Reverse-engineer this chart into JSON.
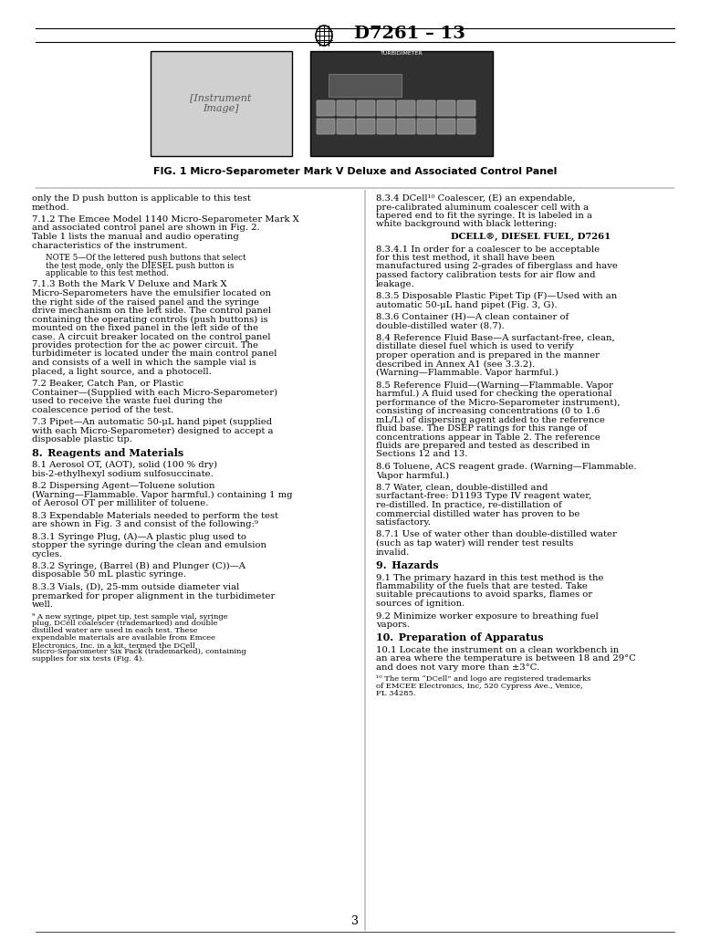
{
  "title": "D7261 – 13",
  "bg_color": "#ffffff",
  "text_color": "#000000",
  "red_color": "#cc0000",
  "fig_caption": "FIG. 1 Micro-Separometer Mark V Deluxe and Associated Control Panel",
  "page_number": "3",
  "left_column": [
    {
      "type": "body",
      "text": "only the D push button is applicable to this test method."
    },
    {
      "type": "body",
      "text": "7.1.2 The Emcee Model 1140 Micro-Separometer Mark X and associated control panel are shown in [red]Fig. 2[/red]. [red]Table 1[/red] lists the manual and audio operating characteristics of the instrument."
    },
    {
      "type": "note",
      "text": "NOTE 5—Of the lettered push buttons that select the test mode, only the DIESEL push button is applicable to this test method."
    },
    {
      "type": "body",
      "text": "7.1.3 Both the Mark V Deluxe and Mark X Micro-Separometers have the [italic]emulsifier[/italic] located on the right side of the raised panel and the [italic]syringe drive mechanism[/italic] on the left side. The control panel containing the operating controls (push buttons) is mounted on the fixed panel in the left side of the case. A circuit breaker located on the control panel provides protection for the ac power circuit. The turbidimeter is located under the main control panel and consists of a well in which the sample vial is placed, a light source, and a photocell."
    },
    {
      "type": "body",
      "text": "7.2 [italic]Beaker, Catch Pan, or Plastic Container[/italic]—(Supplied with each Micro-Separometer) used to receive the waste fuel during the coalescence period of the test."
    },
    {
      "type": "body",
      "text": "7.3 [italic]Pipet[/italic]—An automatic 50-μL hand pipet (supplied with each Micro-Separometer) designed to accept a disposable plastic tip."
    },
    {
      "type": "section",
      "text": "8. Reagents and Materials"
    },
    {
      "type": "body",
      "text": "8.1 [italic]Aerosol OT,[/italic] (AOT), solid (100 % dry) bis-2-ethylhexyl sodium sulfosuccinate."
    },
    {
      "type": "body",
      "text": "8.2 [italic]Dispersing Agent[/italic]—Toluene solution ([bold]Warning[/bold]—Flammable. Vapor harmful.) containing 1 mg of Aerosol OT per milliliter of toluene."
    },
    {
      "type": "body",
      "text": "8.3 [italic]Expendable Materials[/italic] needed to perform the test are shown in [red]Fig. 3[/red] and consist of the following:[super]9[/super]"
    },
    {
      "type": "body",
      "text": "8.3.1 [italic]Syringe Plug, (A)[/italic]—A plastic plug used to stopper the syringe during the clean and emulsion cycles."
    },
    {
      "type": "body",
      "text": "8.3.2 [italic]Syringe, (Barrel (B) and Plunger (C))[/italic]—A disposable 50 mL plastic syringe."
    },
    {
      "type": "body",
      "text": "8.3.3 [italic]Vials, (D),[/italic] 25-mm outside diameter vial premarked for proper alignment in the turbidimeter well."
    },
    {
      "type": "footnote",
      "text": "[super]9[/super] A new syringe, pipet tip, test sample vial, syringe plug, DCell coalescer (trademarked) and double distilled water are used in each test. These expendable materials are available from Emcee Electronics, Inc. in a kit, termed the DCell Micro-Separometer Six Pack (trademarked), containing supplies for six tests ([red]Fig. 4[/red])."
    }
  ],
  "right_column": [
    {
      "type": "body",
      "text": "8.3.4 [italic]DCell[/italic][super]10[/super] [italic]Coalescer, (E)[/italic] an expendable, pre-calibrated aluminum coalescer cell with a tapered end to fit the syringe. It is labeled in a white background with black lettering:"
    },
    {
      "type": "centered",
      "text": "DCELL®, DIESEL FUEL, D7261"
    },
    {
      "type": "body",
      "text": "8.3.4.1 In order for a coalescer to be acceptable for this test method, it shall have been manufactured using 2-grades of fiberglass and have passed factory calibration tests for air flow and leakage."
    },
    {
      "type": "body",
      "text": "8.3.5 [italic]Disposable Plastic Pipet Tip (F)[/italic]—Used with an automatic 50-μL hand pipet ([red]Fig. 3[/red], G)."
    },
    {
      "type": "body",
      "text": "8.3.6 [italic]Container (H)[/italic]—A clean container of double-distilled water ([red]8.7[/red])."
    },
    {
      "type": "body",
      "text": "8.4 [italic]Reference Fluid Base[/italic]—A surfactant-free, clean, distillate diesel fuel which is used to verify proper operation and is prepared in the manner described in [red]Annex A1[/red] (see [red]3.3.2[/red]). ([bold]Warning[/bold]—Flammable. Vapor harmful.)"
    },
    {
      "type": "body",
      "text": "8.5 [italic]Reference Fluid[/italic]—([bold]Warning[/bold]—Flammable. Vapor harmful.) A fluid used for checking the operational performance of the Micro-Separometer instrument), consisting of increasing concentrations (0 to 1.6 mL/L) of dispersing agent added to the reference fluid base. The DSEP ratings for this range of concentrations appear in [red]Table 2[/red]. The reference fluids are prepared and tested as described in Sections [red]12[/red] and [red]13[/red]."
    },
    {
      "type": "body",
      "text": "8.6 [italic]Toluene,[/italic] ACS reagent grade. ([bold]Warning[/bold]—Flammable. Vapor harmful.)"
    },
    {
      "type": "body",
      "text": "8.7 [italic]Water,[/italic] clean, double-distilled and surfactant-free: [red]D1193[/red] Type IV reagent water, re-distilled. In practice, re-distillation of commercial distilled water has proven to be satisfactory."
    },
    {
      "type": "body",
      "text": "8.7.1 Use of water other than double-distilled water (such as tap water) will render test results invalid."
    },
    {
      "type": "section",
      "text": "9. Hazards"
    },
    {
      "type": "body",
      "text": "9.1 The primary hazard in this test method is the flammability of the fuels that are tested. Take suitable precautions to avoid sparks, flames or sources of ignition."
    },
    {
      "type": "body",
      "text": "9.2 Minimize worker exposure to breathing fuel vapors."
    },
    {
      "type": "section",
      "text": "10. Preparation of Apparatus"
    },
    {
      "type": "body",
      "text": "10.1 Locate the instrument on a clean workbench in an area where the temperature is between 18 and 29°C and does not vary more than ±3°C."
    },
    {
      "type": "footnote",
      "text": "[super]10[/super] The term “DCell” and logo are registered trademarks of EMCEE Electronics, Inc, 520 Cypress Ave., Venice, FL 34285."
    }
  ]
}
